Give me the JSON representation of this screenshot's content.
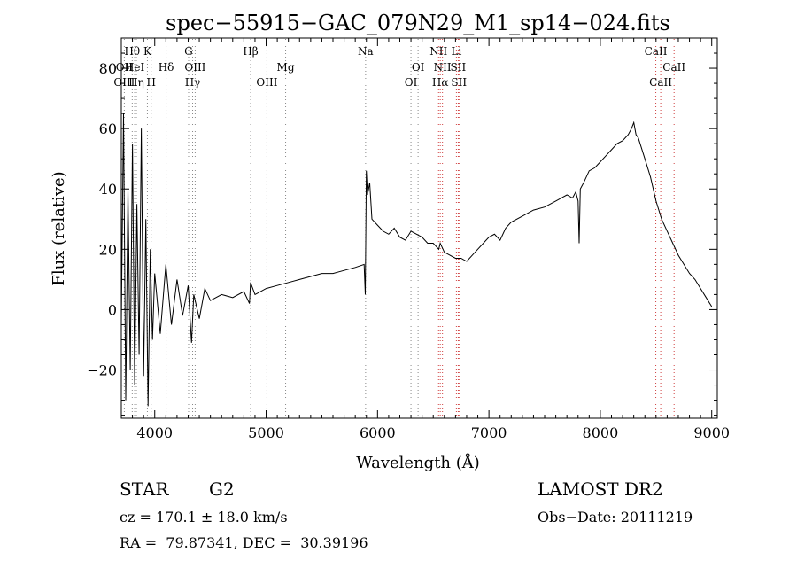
{
  "chart_data": {
    "type": "line",
    "title": "spec−55915−GAC_079N29_M1_sp14−024.fits",
    "xlabel": "Wavelength (Å)",
    "ylabel": "Flux (relative)",
    "xlim": [
      3700,
      9050
    ],
    "ylim": [
      -36,
      90
    ],
    "xticks": [
      4000,
      5000,
      6000,
      7000,
      8000,
      9000
    ],
    "yticks": [
      -20,
      0,
      20,
      40,
      60,
      80
    ],
    "ytick_labels": [
      "−20",
      "0",
      "20",
      "40",
      "60",
      "80"
    ],
    "grid": false,
    "series": [
      {
        "x": [
          3700,
          3720,
          3740,
          3760,
          3780,
          3800,
          3820,
          3840,
          3860,
          3880,
          3900,
          3920,
          3940,
          3960,
          3980,
          4000,
          4050,
          4100,
          4150,
          4200,
          4250,
          4300,
          4330,
          4350,
          4400,
          4450,
          4500,
          4600,
          4700,
          4800,
          4850,
          4860,
          4900,
          5000,
          5100,
          5200,
          5300,
          5400,
          5500,
          5600,
          5700,
          5800,
          5880,
          5890,
          5900,
          5910,
          5930,
          5950,
          6000,
          6050,
          6100,
          6150,
          6200,
          6250,
          6300,
          6350,
          6400,
          6450,
          6500,
          6550,
          6563,
          6600,
          6650,
          6700,
          6750,
          6800,
          6850,
          6900,
          6950,
          7000,
          7050,
          7100,
          7150,
          7200,
          7300,
          7400,
          7500,
          7600,
          7700,
          7750,
          7780,
          7800,
          7810,
          7820,
          7850,
          7900,
          7950,
          8000,
          8050,
          8100,
          8150,
          8200,
          8250,
          8280,
          8300,
          8320,
          8340,
          8400,
          8450,
          8500,
          8550,
          8600,
          8650,
          8700,
          8750,
          8800,
          8850,
          8900,
          8950,
          9000
        ],
        "y": [
          -5,
          65,
          -30,
          40,
          -20,
          55,
          -25,
          35,
          -15,
          60,
          -22,
          30,
          -32,
          20,
          -10,
          12,
          -8,
          15,
          -5,
          10,
          -2,
          8,
          -11,
          5,
          -3,
          7,
          3,
          5,
          4,
          6,
          2,
          9,
          5,
          7,
          8,
          9,
          10,
          11,
          12,
          12,
          13,
          14,
          15,
          5,
          46,
          38,
          42,
          30,
          28,
          26,
          25,
          27,
          24,
          23,
          26,
          25,
          24,
          22,
          22,
          20,
          22,
          19,
          18,
          17,
          17,
          16,
          18,
          20,
          22,
          24,
          25,
          23,
          27,
          29,
          31,
          33,
          34,
          36,
          38,
          37,
          39,
          36,
          22,
          40,
          42,
          46,
          47,
          49,
          51,
          53,
          55,
          56,
          58,
          60,
          62,
          58,
          57,
          50,
          44,
          36,
          30,
          26,
          22,
          18,
          15,
          12,
          10,
          7,
          4,
          1
        ]
      }
    ],
    "annotations": [
      {
        "label": "Hθ",
        "x": 3798,
        "row": 1
      },
      {
        "label": "OII",
        "x": 3727,
        "row": 2
      },
      {
        "label": "HeI",
        "x": 3820,
        "row": 2
      },
      {
        "label": "OIII",
        "x": 3727,
        "row": 3
      },
      {
        "label": "Hη",
        "x": 3835,
        "row": 3
      },
      {
        "label": "K",
        "x": 3934,
        "row": 1
      },
      {
        "label": "H",
        "x": 3968,
        "row": 3
      },
      {
        "label": "Hδ",
        "x": 4102,
        "row": 2
      },
      {
        "label": "G",
        "x": 4304,
        "row": 1
      },
      {
        "label": "OIII",
        "x": 4363,
        "row": 2
      },
      {
        "label": "Hγ",
        "x": 4340,
        "row": 3
      },
      {
        "label": "Hβ",
        "x": 4861,
        "row": 1
      },
      {
        "label": "OIII",
        "x": 5007,
        "row": 3
      },
      {
        "label": "Mg",
        "x": 5175,
        "row": 2
      },
      {
        "label": "Na",
        "x": 5893,
        "row": 1
      },
      {
        "label": "OI",
        "x": 6364,
        "row": 2
      },
      {
        "label": "OI",
        "x": 6300,
        "row": 3
      },
      {
        "label": "NII",
        "x": 6548,
        "row": 1
      },
      {
        "label": "NII",
        "x": 6583,
        "row": 2
      },
      {
        "label": "Hα",
        "x": 6563,
        "row": 3
      },
      {
        "label": "Li",
        "x": 6708,
        "row": 1
      },
      {
        "label": "SII",
        "x": 6724,
        "row": 2
      },
      {
        "label": "SII",
        "x": 6731,
        "row": 3
      },
      {
        "label": "CaII",
        "x": 8498,
        "row": 1
      },
      {
        "label": "CaII",
        "x": 8662,
        "row": 2
      },
      {
        "label": "CaII",
        "x": 8542,
        "row": 3
      }
    ]
  },
  "info": {
    "object_class": "STAR",
    "subclass": "G2",
    "survey": "LAMOST DR2",
    "redshift": "cz = 170.1 ± 18.0 km/s",
    "obs_date": "Obs−Date: 20111219",
    "coords": "RA =  79.87341, DEC =  30.39196"
  }
}
